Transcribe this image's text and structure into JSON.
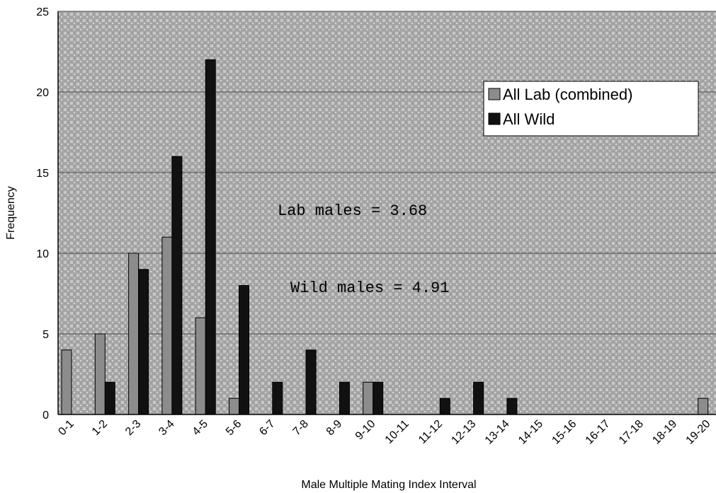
{
  "chart_data": {
    "type": "bar",
    "xlabel": "Male Multiple Mating Index Interval",
    "ylabel": "Frequency",
    "ylim": [
      0,
      25
    ],
    "yticks": [
      0,
      5,
      10,
      15,
      20,
      25
    ],
    "grid": true,
    "legend_position": "top-right",
    "categories": [
      "0-1",
      "1-2",
      "2-3",
      "3-4",
      "4-5",
      "5-6",
      "6-7",
      "7-8",
      "8-9",
      "9-10",
      "10-11",
      "11-12",
      "12-13",
      "13-14",
      "14-15",
      "15-16",
      "16-17",
      "17-18",
      "18-19",
      "19-20"
    ],
    "series": [
      {
        "name": "All Lab (combined)",
        "color": "#8c8c8c",
        "values": [
          4,
          5,
          10,
          11,
          6,
          1,
          0,
          0,
          0,
          2,
          0,
          0,
          0,
          0,
          0,
          0,
          0,
          0,
          0,
          1
        ]
      },
      {
        "name": "All Wild",
        "color": "#111111",
        "values": [
          0,
          2,
          9,
          16,
          22,
          8,
          2,
          4,
          2,
          2,
          0,
          1,
          2,
          1,
          0,
          0,
          0,
          0,
          0,
          0
        ]
      }
    ],
    "annotations": [
      "Lab males = 3.68",
      "Wild males = 4.91"
    ]
  },
  "colors": {
    "plot_background": "#a9a9a9",
    "gridline": "#4a4a4a"
  }
}
